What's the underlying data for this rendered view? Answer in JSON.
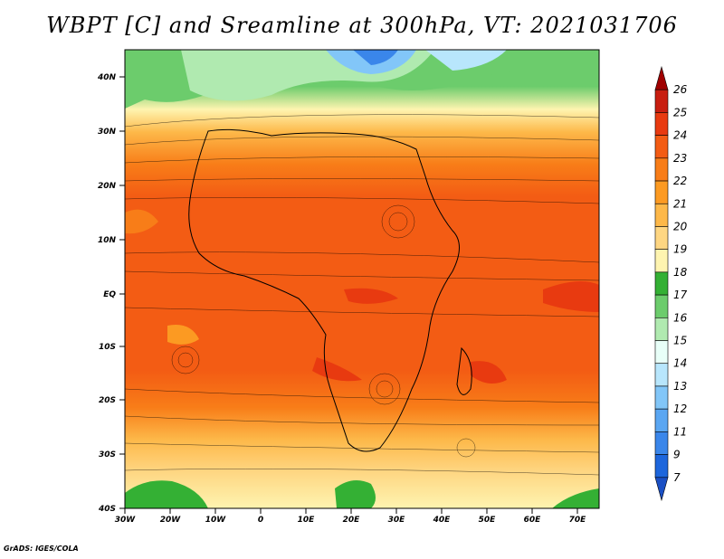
{
  "title": "WBPT [C] and Sreamline at 300hPa, VT: 2021031706",
  "footer": "GrADS: IGES/COLA",
  "axes": {
    "lat_labels": [
      "40N",
      "30N",
      "20N",
      "10N",
      "EQ",
      "10S",
      "20S",
      "30S",
      "40S"
    ],
    "lon_labels": [
      "30W",
      "20W",
      "10W",
      "0",
      "10E",
      "20E",
      "30E",
      "40E",
      "50E",
      "60E",
      "70E"
    ]
  },
  "colorbar": {
    "labels": [
      "26",
      "25",
      "24",
      "23",
      "22",
      "21",
      "20",
      "19",
      "18",
      "17",
      "16",
      "15",
      "14",
      "13",
      "12",
      "11",
      "9",
      "7"
    ],
    "colors": [
      "#a00000",
      "#c81e10",
      "#e83a10",
      "#f35c14",
      "#f87d18",
      "#fc9a22",
      "#fdb849",
      "#fed682",
      "#fef4b0",
      "#34b034",
      "#6ccc6c",
      "#b0eab0",
      "#e8fff8",
      "#b8e6fc",
      "#82c6f8",
      "#5aa6f2",
      "#3a86ea",
      "#1d66dc",
      "#1a4fc4"
    ]
  }
}
